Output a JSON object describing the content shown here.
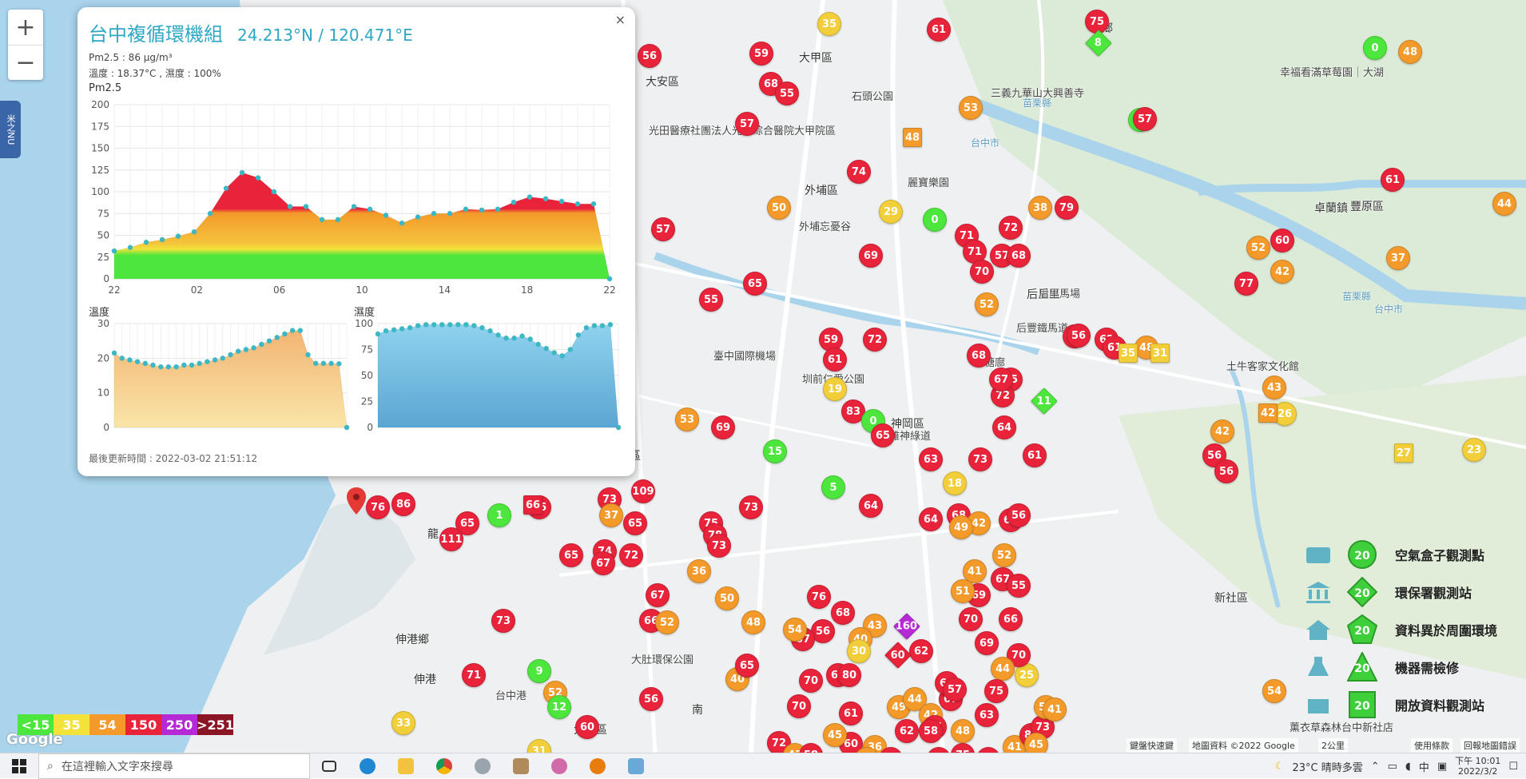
{
  "map": {
    "zoom_in": "+",
    "zoom_out": "−",
    "side_tab": "米之NU",
    "places": [
      {
        "text": "大甲區",
        "cls": "big"
      },
      {
        "text": "大安區",
        "cls": "big"
      },
      {
        "text": "外埔區",
        "cls": "big"
      },
      {
        "text": "后里區",
        "cls": "big"
      },
      {
        "text": "豐原區",
        "cls": "big"
      },
      {
        "text": "卓蘭鎮",
        "cls": "big"
      },
      {
        "text": "義鄉",
        "cls": "big"
      },
      {
        "text": "神岡區",
        "cls": "big"
      },
      {
        "text": "沙鹿區",
        "cls": "big"
      },
      {
        "text": "伸港鄉",
        "cls": "big"
      },
      {
        "text": "伸港",
        "cls": "big"
      },
      {
        "text": "大肚區",
        "cls": "big"
      },
      {
        "text": "新社區",
        "cls": "big"
      },
      {
        "text": "龍",
        "cls": "big"
      },
      {
        "text": "南",
        "cls": "big"
      },
      {
        "text": "苗栗縣",
        "cls": "water"
      },
      {
        "text": "台中市",
        "cls": "water"
      },
      {
        "text": "苗栗縣",
        "cls": "water"
      },
      {
        "text": "台中市",
        "cls": "water"
      },
      {
        "text": "石頭公園",
        "cls": ""
      },
      {
        "text": "臺中國際機場",
        "cls": ""
      },
      {
        "text": "后里馬場",
        "cls": ""
      },
      {
        "text": "土牛客家文化館",
        "cls": ""
      },
      {
        "text": "麗寶樂園",
        "cls": ""
      },
      {
        "text": "幸福看滿草莓園｜大湖",
        "cls": ""
      },
      {
        "text": "三義九華山大興善寺",
        "cls": ""
      },
      {
        "text": "后豐鐵馬道",
        "cls": ""
      },
      {
        "text": "大肚環保公園",
        "cls": ""
      },
      {
        "text": "薰衣草森林台中新社店",
        "cls": ""
      },
      {
        "text": "外埔忘憂谷",
        "cls": ""
      },
      {
        "text": "台中港",
        "cls": ""
      },
      {
        "text": "光田醫療社團法人光田綜合醫院大甲院區",
        "cls": ""
      },
      {
        "text": "圳前仁愛公園",
        "cls": ""
      },
      {
        "text": "豐雅神綠道",
        "cls": ""
      },
      {
        "text": "糖廍",
        "cls": ""
      }
    ],
    "markers": [
      "35",
      "75",
      "8",
      "61",
      "56",
      "59",
      "48",
      "0",
      "68",
      "55",
      "57",
      "74",
      "53",
      "0",
      "57",
      "48",
      "61",
      "37",
      "44",
      "50",
      "29",
      "0",
      "71",
      "72",
      "38",
      "79",
      "77",
      "42",
      "60",
      "52",
      "57",
      "69",
      "71",
      "57",
      "68",
      "70",
      "55",
      "65",
      "52",
      "55",
      "56",
      "62",
      "72",
      "59",
      "61",
      "68",
      "55",
      "61",
      "48",
      "35",
      "31",
      "19",
      "83",
      "0",
      "11",
      "72",
      "64",
      "67",
      "43",
      "26",
      "42",
      "53",
      "69",
      "65",
      "63",
      "73",
      "61",
      "42",
      "56",
      "56",
      "15",
      "27",
      "23",
      "76",
      "86",
      "66",
      "73",
      "109",
      "5",
      "18",
      "1",
      "66",
      "65",
      "37",
      "111",
      "65",
      "64",
      "73",
      "75",
      "68",
      "64",
      "66",
      "56",
      "42",
      "49",
      "52",
      "41",
      "67",
      "55",
      "69",
      "78",
      "73",
      "74",
      "72",
      "65",
      "67",
      "36",
      "51",
      "70",
      "66",
      "73",
      "69",
      "67",
      "66",
      "52",
      "50",
      "48",
      "76",
      "68",
      "43",
      "56",
      "40",
      "67",
      "54",
      "30",
      "160",
      "62",
      "60",
      "66",
      "80",
      "70",
      "9",
      "52",
      "12",
      "56",
      "60",
      "40",
      "65",
      "70",
      "61",
      "49",
      "44",
      "42",
      "67",
      "75",
      "64",
      "57",
      "25",
      "48",
      "63",
      "41",
      "70",
      "44",
      "75",
      "58",
      "62",
      "36",
      "60",
      "45",
      "72",
      "43",
      "58",
      "40",
      "56",
      "73",
      "75",
      "64",
      "85",
      "73",
      "51",
      "41",
      "45",
      "31",
      "71",
      "33",
      "54"
    ]
  },
  "popup": {
    "title": "台中複循環機組",
    "coords": "24.213°N / 120.471°E",
    "pm_line": "Pm2.5 : 86 μg/m³",
    "temp_line": "溫度 : 18.37°C , 濕度 : 100%",
    "pm_label": "Pm2.5",
    "temp_label": "溫度",
    "hum_label": "濕度",
    "footer": "最後更新時間 : 2022-03-02 21:51:12",
    "close": "×"
  },
  "chart_data": [
    {
      "type": "area",
      "title": "Pm2.5",
      "x_ticks": [
        "22",
        "02",
        "06",
        "10",
        "14",
        "18",
        "22"
      ],
      "ylim": [
        0,
        200
      ],
      "y_ticks": [
        0,
        25,
        50,
        75,
        100,
        125,
        150,
        175,
        200
      ],
      "values": [
        32,
        36,
        42,
        45,
        49,
        54,
        75,
        104,
        122,
        116,
        100,
        83,
        83,
        68,
        68,
        83,
        80,
        73,
        64,
        71,
        75,
        75,
        80,
        79,
        80,
        88,
        94,
        92,
        89,
        86,
        86,
        0
      ]
    },
    {
      "type": "area",
      "title": "溫度",
      "ylim": [
        0,
        30
      ],
      "y_ticks": [
        0,
        10,
        20,
        30
      ],
      "values": [
        21.5,
        20,
        19.5,
        19,
        18.5,
        18,
        17.5,
        17.5,
        17.5,
        18,
        18,
        18.5,
        19,
        19.5,
        20,
        21,
        22,
        22.5,
        23,
        24,
        25,
        26,
        27,
        28,
        28,
        21,
        18.5,
        18.5,
        18.5,
        18.4,
        0
      ]
    },
    {
      "type": "area",
      "title": "濕度",
      "ylim": [
        0,
        100
      ],
      "y_ticks": [
        0,
        25,
        50,
        75,
        100
      ],
      "values": [
        90,
        93,
        94,
        95,
        96,
        98,
        99,
        99,
        99,
        99,
        99,
        99,
        98,
        96,
        93,
        89,
        86,
        86,
        88,
        85,
        80,
        76,
        72,
        69,
        75,
        89,
        96,
        98,
        98,
        99,
        0
      ]
    }
  ],
  "legend": {
    "items": [
      {
        "label": "空氣盒子觀測點",
        "value": "20",
        "shape": "circle"
      },
      {
        "label": "環保署觀測站",
        "value": "20",
        "shape": "diamond"
      },
      {
        "label": "資料異於周圍環境",
        "value": "20",
        "shape": "pentagon"
      },
      {
        "label": "機器需檢修",
        "value": "20",
        "shape": "triangle"
      },
      {
        "label": "開放資料觀測站",
        "value": "20",
        "shape": "square"
      }
    ],
    "color_bar": [
      {
        "label": "<15",
        "color": "#4de63c"
      },
      {
        "label": "35",
        "color": "#f2e23a"
      },
      {
        "label": "54",
        "color": "#f39a2a"
      },
      {
        "label": "150",
        "color": "#e8233a"
      },
      {
        "label": "250",
        "color": "#b52ad4"
      },
      {
        "label": ">251",
        "color": "#8a1525"
      }
    ],
    "google": "Google",
    "map_footer_1": "鍵盤快速鍵",
    "map_footer_2": "地圖資料 ©2022 Google",
    "map_footer_3": "2公里",
    "map_footer_4": "使用條款",
    "map_footer_5": "回報地圖錯誤"
  },
  "taskbar": {
    "search_placeholder": "在這裡輸入文字來搜尋",
    "weather": "23°C  晴時多雲",
    "ime": "中",
    "time": "下午 10:01",
    "date": "2022/3/2"
  }
}
